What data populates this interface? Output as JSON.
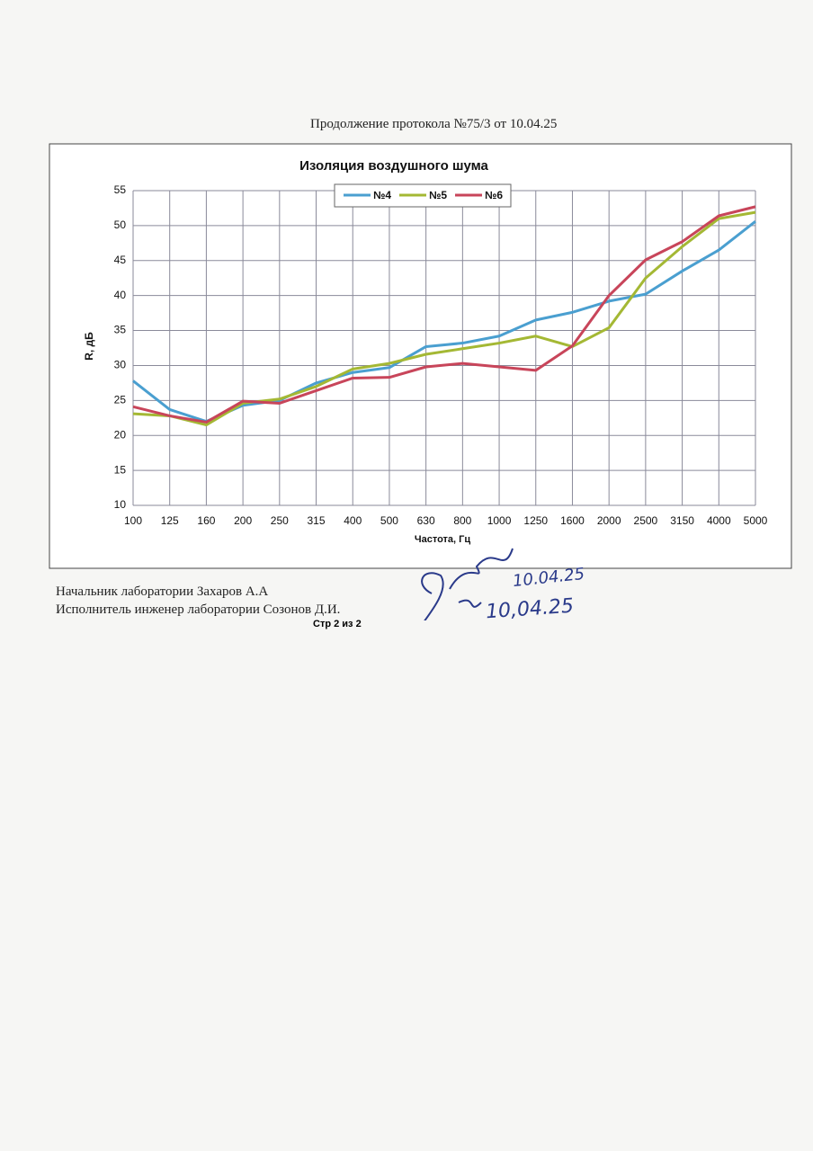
{
  "header": {
    "text": "Продолжение протокола №75/3 от 10.04.25"
  },
  "chart_data": {
    "type": "line",
    "title": "Изоляция воздушного шума",
    "x_label": "Частота, Гц",
    "y_label": "R, дБ",
    "categories": [
      "100",
      "125",
      "160",
      "200",
      "250",
      "315",
      "400",
      "500",
      "630",
      "800",
      "1000",
      "1250",
      "1600",
      "2000",
      "2500",
      "3150",
      "4000",
      "5000"
    ],
    "series": [
      {
        "name": "№4",
        "color": "#4a9fd0",
        "values": [
          27.8,
          23.7,
          22,
          24.3,
          25,
          27.5,
          29,
          29.7,
          32.7,
          33.2,
          34.2,
          36.5,
          37.6,
          39.2,
          40.2,
          43.5,
          46.5,
          50.6
        ]
      },
      {
        "name": "№5",
        "color": "#a4b834",
        "values": [
          23.1,
          22.8,
          21.5,
          24.6,
          25.2,
          27,
          29.5,
          30.3,
          31.6,
          32.4,
          33.2,
          34.2,
          32.7,
          35.4,
          42.5,
          47,
          51,
          51.9
        ]
      },
      {
        "name": "№6",
        "color": "#c8455a",
        "values": [
          24.1,
          22.8,
          21.9,
          24.9,
          24.6,
          26.4,
          28.2,
          28.3,
          29.8,
          30.3,
          29.8,
          29.3,
          32.8,
          40,
          45.1,
          47.7,
          51.4,
          52.7
        ]
      }
    ],
    "ylim": [
      10,
      55
    ],
    "yticks": [
      10,
      15,
      20,
      25,
      30,
      35,
      40,
      45,
      50,
      55
    ],
    "grid": true,
    "legend": "top"
  },
  "footer": {
    "lines": [
      "Начальник лаборатории Захаров А.А",
      "Исполнитель инженер лаборатории Созонов Д.И."
    ],
    "page": "Стр 2 из 2",
    "dates": [
      "10.04.25",
      "10,04.25"
    ]
  }
}
